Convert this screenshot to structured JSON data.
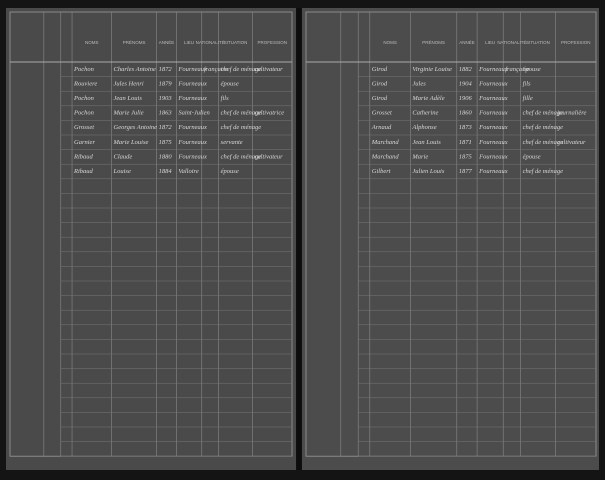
{
  "pages": [
    {
      "headers": [
        "NOMS",
        "PRÉNOMS",
        "ANNÉE",
        "LIEU",
        "NATIONALITÉ",
        "SITUATION",
        "PROFESSION"
      ],
      "rows": [
        [
          "Pochon",
          "Charles Antoine",
          "1872",
          "Fourneaux",
          "française",
          "chef de ménage",
          "cultivateur"
        ],
        [
          "Rouviere",
          "Jules Henri",
          "1879",
          "Fourneaux",
          "",
          "épouse",
          ""
        ],
        [
          "Pochon",
          "Jean Louis",
          "1903",
          "Fourneaux",
          "",
          "fils",
          ""
        ],
        [
          "Pochon",
          "Marie Julie",
          "1863",
          "Saint-Julien",
          "",
          "chef de ménage",
          "cultivatrice"
        ],
        [
          "Grosset",
          "Georges Antoine",
          "1872",
          "Fourneaux",
          "",
          "chef de ménage",
          ""
        ],
        [
          "Garnier",
          "Marie Louise",
          "1875",
          "Fourneaux",
          "",
          "servante",
          ""
        ],
        [
          "Ribaud",
          "Claude",
          "1880",
          "Fourneaux",
          "",
          "chef de ménage",
          "cultivateur"
        ],
        [
          "Ribaud",
          "Louise",
          "1884",
          "Valloire",
          "",
          "épouse",
          ""
        ]
      ]
    },
    {
      "headers": [
        "NOMS",
        "PRÉNOMS",
        "ANNÉE",
        "LIEU",
        "NATIONALITÉ",
        "SITUATION",
        "PROFESSION"
      ],
      "rows": [
        [
          "Girod",
          "Virginie Louise",
          "1882",
          "Fourneaux",
          "française",
          "épouse",
          ""
        ],
        [
          "Girod",
          "Jules",
          "1904",
          "Fourneaux",
          "",
          "fils",
          ""
        ],
        [
          "Girod",
          "Marie Adèle",
          "1906",
          "Fourneaux",
          "",
          "fille",
          ""
        ],
        [
          "Grosset",
          "Catherine",
          "1860",
          "Fourneaux",
          "",
          "chef de ménage",
          "journalière"
        ],
        [
          "Arnaud",
          "Alphonse",
          "1873",
          "Fourneaux",
          "",
          "chef de ménage",
          ""
        ],
        [
          "Marchand",
          "Jean Louis",
          "1871",
          "Fourneaux",
          "",
          "chef de ménage",
          "cultivateur"
        ],
        [
          "Marchand",
          "Marie",
          "1875",
          "Fourneaux",
          "",
          "épouse",
          ""
        ],
        [
          "Gilbert",
          "Julien Louis",
          "1877",
          "Fourneaux",
          "",
          "chef de ménage",
          ""
        ]
      ]
    }
  ]
}
